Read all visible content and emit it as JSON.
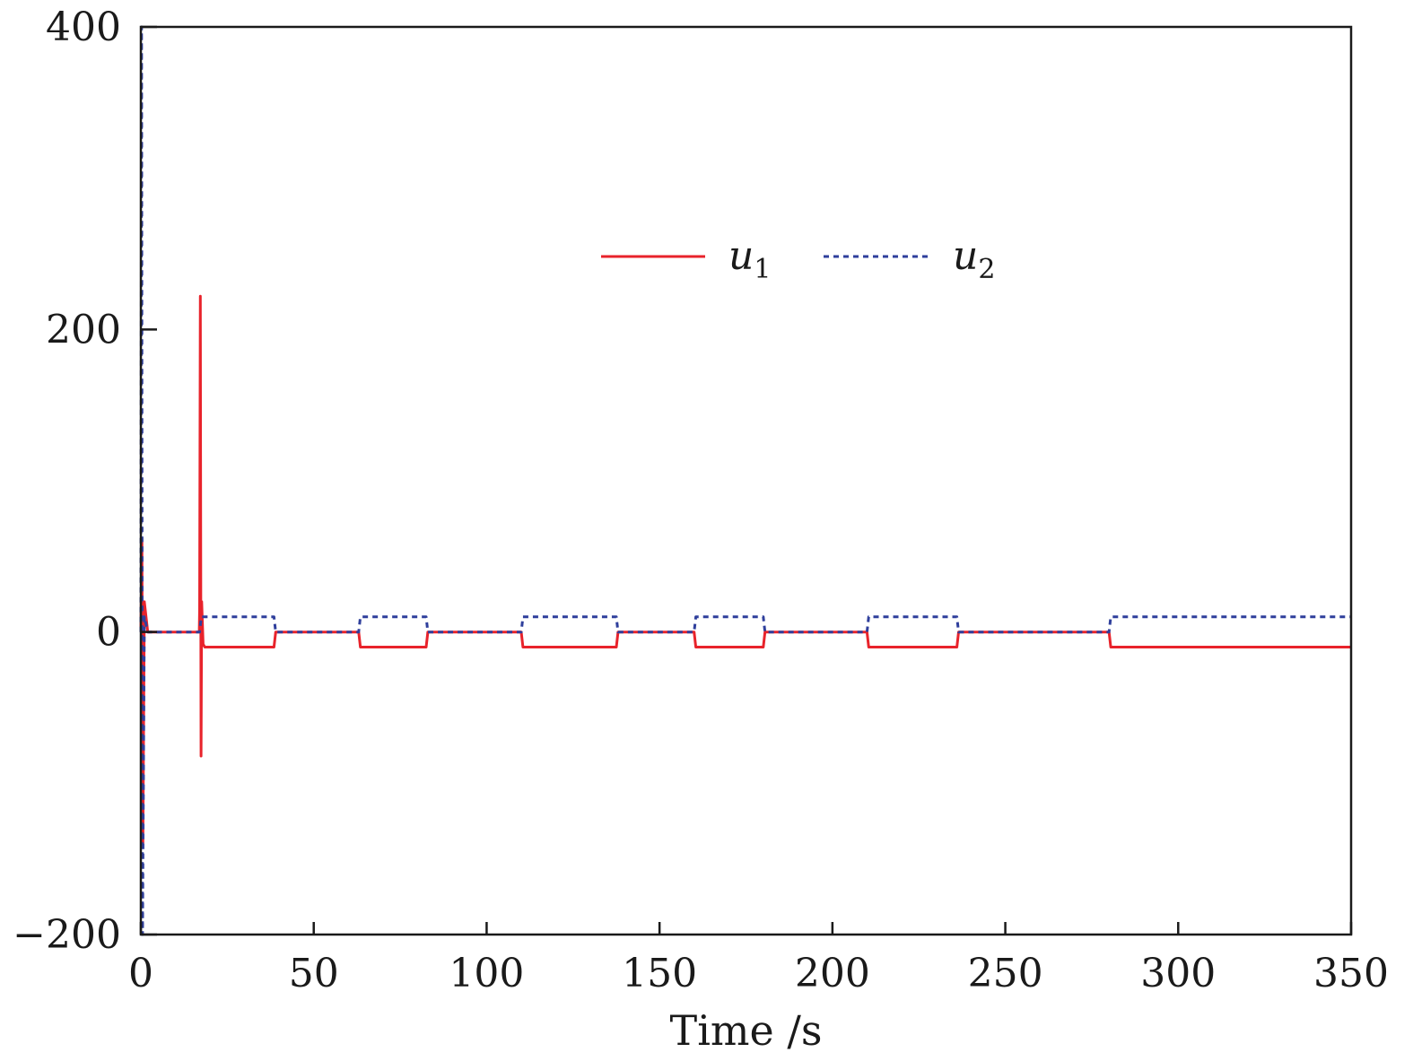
{
  "chart_data": {
    "type": "line",
    "title": "",
    "xlabel": "Time /s",
    "ylabel": "",
    "xlim": [
      0,
      350
    ],
    "ylim": [
      -200,
      400
    ],
    "xticks": [
      0,
      50,
      100,
      150,
      200,
      250,
      300,
      350
    ],
    "yticks": [
      -200,
      0,
      200,
      400
    ],
    "xtick_labels": [
      "0",
      "50",
      "100",
      "150",
      "200",
      "250",
      "300",
      "350"
    ],
    "ytick_labels": [
      "−200",
      "0",
      "200",
      "400"
    ],
    "grid": false,
    "legend": {
      "placement": "upper-center",
      "entries": [
        {
          "label": "u",
          "subscript": "1"
        },
        {
          "label": "u",
          "subscript": "2"
        }
      ]
    },
    "series": [
      {
        "name": "u1",
        "color": "#e8232b",
        "style": "solid",
        "x": [
          0,
          0.3,
          0.6,
          1.0,
          2,
          16.9,
          17.0,
          17.2,
          17.4,
          17.6,
          18.0,
          18.5,
          38.5,
          39.0,
          63.0,
          63.5,
          82.5,
          83.0,
          110.0,
          110.5,
          137.5,
          138.0,
          160.0,
          160.5,
          180.0,
          180.5,
          210.0,
          210.5,
          236.0,
          236.5,
          280.0,
          280.5,
          350
        ],
        "y": [
          0,
          60,
          -140,
          20,
          0,
          0,
          15,
          222,
          -82,
          20,
          -8,
          -10,
          -10,
          0,
          0,
          -10,
          -10,
          0,
          0,
          -10,
          -10,
          0,
          0,
          -10,
          -10,
          0,
          0,
          -10,
          -10,
          0,
          0,
          -10,
          -10
        ]
      },
      {
        "name": "u2",
        "color": "#2f3f9c",
        "style": "dashed",
        "x": [
          0,
          0.2,
          0.5,
          1.0,
          2,
          17.0,
          17.5,
          18.0,
          38.5,
          39.0,
          63.0,
          63.5,
          82.5,
          83.0,
          110.0,
          110.5,
          137.5,
          138.0,
          160.0,
          160.5,
          180.0,
          180.5,
          210.0,
          210.5,
          236.0,
          236.5,
          280.0,
          280.5,
          350
        ],
        "y": [
          0,
          400,
          -200,
          10,
          0,
          0,
          10,
          10,
          10,
          0,
          0,
          10,
          10,
          0,
          0,
          10,
          10,
          0,
          0,
          10,
          10,
          0,
          0,
          10,
          10,
          0,
          0,
          10,
          10
        ]
      }
    ]
  }
}
